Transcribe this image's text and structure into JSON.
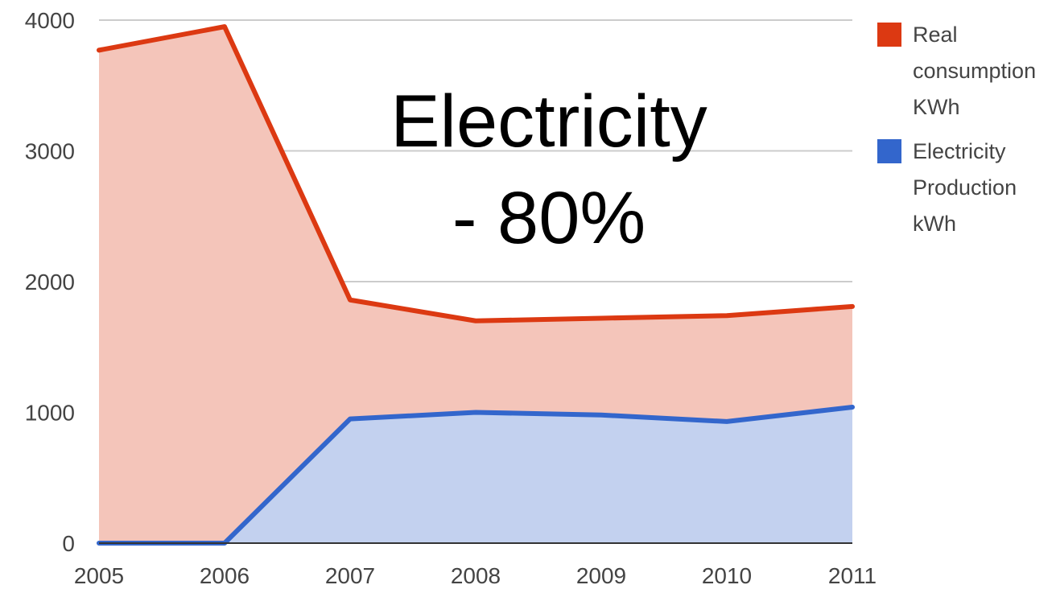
{
  "chart_data": {
    "type": "area",
    "x": [
      "2005",
      "2006",
      "2007",
      "2008",
      "2009",
      "2010",
      "2011"
    ],
    "series": [
      {
        "name": "Real consumption KWh",
        "legend_lines": [
          "Real",
          "consumption",
          "KWh"
        ],
        "color": "#dc3912",
        "fill": "#f4c5ba",
        "values": [
          3770,
          3950,
          1860,
          1700,
          1720,
          1740,
          1810
        ]
      },
      {
        "name": "Electricity Production kWh",
        "legend_lines": [
          "Electricity",
          "Production",
          "kWh"
        ],
        "color": "#3366cc",
        "fill": "#c3d1ef",
        "values": [
          0,
          0,
          950,
          1000,
          980,
          930,
          1040
        ]
      }
    ],
    "ylim": [
      0,
      4000
    ],
    "yticks": [
      0,
      1000,
      2000,
      3000,
      4000
    ],
    "ytick_labels": [
      "0",
      "1000",
      "2000",
      "3000",
      "4000"
    ],
    "title": "",
    "xlabel": "",
    "ylabel": "",
    "grid": true,
    "legend_position": "right"
  },
  "overlay": {
    "line1": "Electricity",
    "line2": "- 80%"
  }
}
